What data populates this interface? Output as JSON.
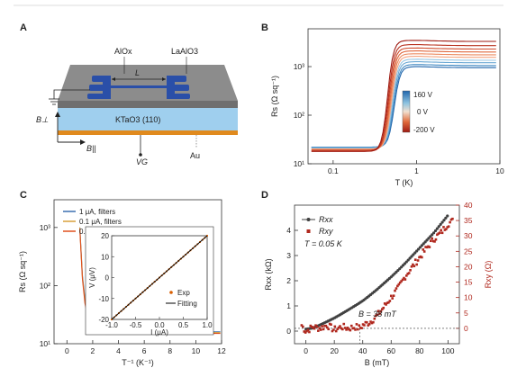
{
  "panels": {
    "A": {
      "letter": "A",
      "labels": {
        "alox": "AlOx",
        "laalo3": "LaAlO3",
        "length": "L",
        "substrate": "KTaO3 (110)",
        "b_perp": "B⊥",
        "b_par": "B||",
        "vg": "VG",
        "au": "Au"
      },
      "colors": {
        "top_layer": "#8c8c8c",
        "top_layer_side": "#6f6f6f",
        "electrodes": "#2a4fa8",
        "substrate": "#9fcfee",
        "substrate_side": "#7fb5dd",
        "gold": "#e08a1e"
      }
    },
    "B": {
      "letter": "B",
      "colorbar": {
        "labels": [
          "160 V",
          "0 V",
          "-200 V"
        ],
        "colors": [
          "#2166ac",
          "#67a9cf",
          "#f7f7f7",
          "#ef8a62",
          "#b2182b"
        ]
      }
    },
    "C": {
      "letter": "C",
      "inset": {
        "title_x": "I (μA)",
        "title_y": "V (μV)",
        "legend": [
          "Exp",
          "Fitting"
        ],
        "exp_color": "#d95f02",
        "fit_color": "#000000"
      }
    },
    "D": {
      "letter": "D",
      "annotation_T": "T = 0.05 K",
      "annotation_B": "B = 38 mT",
      "legend": [
        "Rxx",
        "Rxy"
      ],
      "right_ylabel": "Rxy (Ω)"
    }
  },
  "chart_data": [
    {
      "panel": "B",
      "type": "line",
      "xlabel": "T (K)",
      "ylabel": "Rs (Ω sq⁻¹)",
      "xscale": "log",
      "yscale": "log",
      "xlim": [
        0.05,
        10
      ],
      "ylim": [
        10,
        6000
      ],
      "xticks": [
        0.1,
        1,
        10
      ],
      "yticks": [
        10,
        100,
        1000
      ],
      "xtick_labels": [
        "0.1",
        "1",
        "10"
      ],
      "ytick_labels": [
        "10¹",
        "10²",
        "10³"
      ],
      "series_note": "gate-voltage sweep curves from 160 V (blue) to -200 V (red)",
      "curves": [
        {
          "gate_V": 160,
          "low": 22,
          "high": 950,
          "tc": 0.54,
          "color": "#2166ac"
        },
        {
          "gate_V": 120,
          "low": 22,
          "high": 1050,
          "tc": 0.53,
          "color": "#3f87c0"
        },
        {
          "gate_V": 80,
          "low": 21,
          "high": 1200,
          "tc": 0.52,
          "color": "#6aa8d4"
        },
        {
          "gate_V": 40,
          "low": 21,
          "high": 1350,
          "tc": 0.51,
          "color": "#98c6e2"
        },
        {
          "gate_V": 0,
          "low": 20,
          "high": 1550,
          "tc": 0.5,
          "color": "#f4a582"
        },
        {
          "gate_V": -40,
          "low": 20,
          "high": 1750,
          "tc": 0.49,
          "color": "#ec8a5f"
        },
        {
          "gate_V": -80,
          "low": 19,
          "high": 2000,
          "tc": 0.48,
          "color": "#e0683e"
        },
        {
          "gate_V": -120,
          "low": 19,
          "high": 2300,
          "tc": 0.47,
          "color": "#cf4a2b"
        },
        {
          "gate_V": -160,
          "low": 18,
          "high": 2700,
          "tc": 0.46,
          "color": "#b8301d"
        },
        {
          "gate_V": -200,
          "low": 18,
          "high": 3300,
          "tc": 0.45,
          "color": "#9e1a12"
        }
      ]
    },
    {
      "panel": "C",
      "type": "line",
      "xlabel": "T⁻¹ (K⁻¹)",
      "ylabel": "Rs (Ω sq⁻¹)",
      "yscale": "log",
      "xlim": [
        -1,
        12
      ],
      "ylim": [
        10,
        3000
      ],
      "xticks": [
        0,
        2,
        4,
        6,
        8,
        10,
        12
      ],
      "ytick_labels": [
        "10¹",
        "10²",
        "10³"
      ],
      "series": [
        {
          "name": "1 μA, filters",
          "color": "#3a6fb0",
          "x": [
            1.0,
            1.1,
            1.2,
            1.4,
            1.6,
            1.8,
            2.0,
            2.5,
            3.0,
            4.0,
            6.0,
            8.0,
            10.0,
            11.9
          ],
          "y": [
            1000,
            400,
            150,
            60,
            35,
            25,
            20,
            17,
            16.5,
            16,
            16,
            16,
            16,
            16
          ]
        },
        {
          "name": "0.1 μA, filters",
          "color": "#d9a13a",
          "x": [
            1.0,
            1.1,
            1.2,
            1.4,
            1.6,
            1.8,
            2.0,
            2.5,
            3.0,
            4.0,
            6.0,
            8.0,
            10.0,
            11.9
          ],
          "y": [
            1000,
            380,
            140,
            55,
            32,
            23,
            19,
            16.5,
            16,
            15.5,
            15.5,
            15.5,
            15.5,
            15.5
          ]
        },
        {
          "name": "0.1 μA, no filters",
          "color": "#e0501e",
          "x": [
            1.0,
            1.1,
            1.2,
            1.4,
            1.6,
            1.8,
            2.0,
            2.5,
            3.0,
            4.0,
            6.0,
            8.0,
            10.0,
            11.9
          ],
          "y": [
            950,
            360,
            130,
            50,
            30,
            22,
            18,
            16,
            15.5,
            15,
            15,
            15,
            15,
            15
          ]
        }
      ],
      "inset": {
        "type": "scatter",
        "xlim": [
          -1,
          1
        ],
        "ylim": [
          -20,
          20
        ],
        "xticks": [
          -1.0,
          -0.5,
          0.0,
          0.5,
          1.0
        ],
        "yticks": [
          -20,
          -10,
          0,
          10,
          20
        ],
        "slope_uV_per_uA": 20
      }
    },
    {
      "panel": "D",
      "type": "scatter",
      "xlabel": "B (mT)",
      "ylabel_left": "Rxx (kΩ)",
      "ylabel_right": "Rxy (Ω)",
      "xlim": [
        -8,
        108
      ],
      "ylim_left": [
        -0.5,
        5
      ],
      "ylim_right": [
        -5,
        40
      ],
      "xticks": [
        0,
        20,
        40,
        60,
        80,
        100
      ],
      "yticks_left": [
        0,
        1,
        2,
        3,
        4
      ],
      "yticks_right": [
        0,
        5,
        10,
        15,
        20,
        25,
        30,
        35,
        40
      ],
      "series": [
        {
          "name": "Rxx",
          "axis": "left",
          "color": "#404040",
          "x": [
            0,
            5,
            10,
            15,
            20,
            25,
            30,
            35,
            40,
            45,
            50,
            55,
            60,
            65,
            70,
            75,
            80,
            85,
            90,
            95,
            100
          ],
          "y": [
            0.08,
            0.12,
            0.25,
            0.38,
            0.52,
            0.68,
            0.85,
            1.02,
            1.2,
            1.42,
            1.65,
            1.9,
            2.15,
            2.42,
            2.7,
            3.0,
            3.3,
            3.6,
            3.9,
            4.25,
            4.6
          ]
        },
        {
          "name": "Rxy",
          "axis": "right",
          "color": "#b0281e",
          "x": [
            -3,
            0,
            5,
            10,
            15,
            20,
            25,
            30,
            35,
            38,
            40,
            45,
            50,
            55,
            60,
            65,
            70,
            75,
            80,
            85,
            90,
            95,
            100,
            104
          ],
          "y": [
            1,
            -1,
            0.5,
            0,
            1,
            -0.5,
            0.5,
            0,
            0.5,
            0,
            1,
            2,
            4,
            7,
            10,
            13,
            17,
            20,
            23,
            26,
            29,
            31,
            34,
            35
          ]
        }
      ]
    }
  ]
}
